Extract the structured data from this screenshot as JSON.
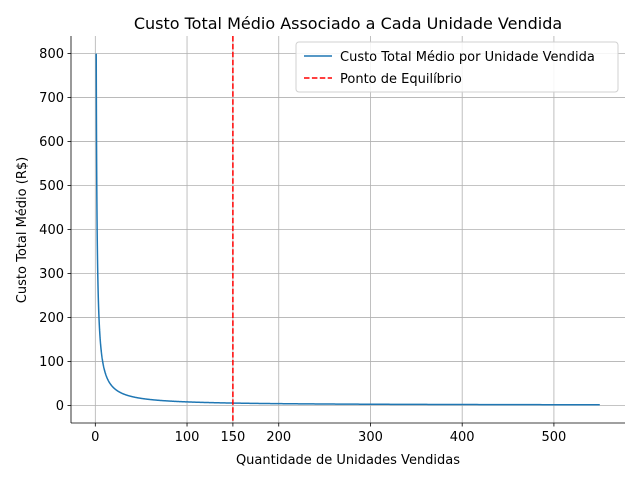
{
  "chart_data": {
    "type": "line",
    "title": "Custo Total Médio Associado a Cada Unidade Vendida",
    "xlabel": "Quantidade de Unidades Vendidas",
    "ylabel": "Custo Total Médio (R$)",
    "xlim": [
      -26.5,
      577.5
    ],
    "ylim": [
      -40,
      840
    ],
    "xticks": [
      0,
      100,
      150,
      200,
      300,
      400,
      500
    ],
    "yticks": [
      0,
      100,
      200,
      300,
      400,
      500,
      600,
      700,
      800
    ],
    "grid": true,
    "legend_position": "top-right",
    "series": [
      {
        "name": "Custo Total Médio por Unidade Vendida",
        "color": "#1f77b4",
        "style": "solid",
        "function": "800 / x",
        "x_range": [
          1,
          550
        ]
      }
    ],
    "vlines": [
      {
        "name": "Ponto de Equilíbrio",
        "x": 150,
        "color": "#ff0000",
        "style": "dashed"
      }
    ]
  }
}
